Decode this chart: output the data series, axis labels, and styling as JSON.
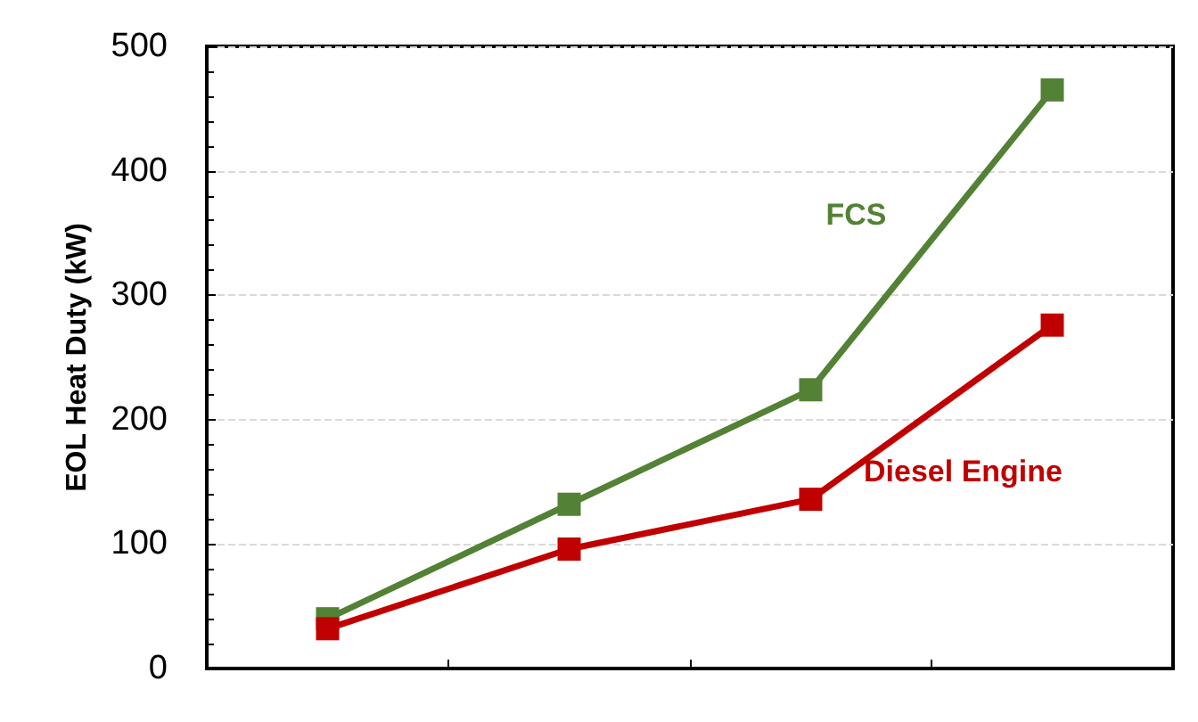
{
  "chart_data": {
    "type": "line",
    "ylabel": "EOL Heat Duty (kW)",
    "categories": [
      null,
      null,
      null,
      null
    ],
    "series": [
      {
        "name": "FCS",
        "color": "#538135",
        "values": [
          40,
          132,
          224,
          465
        ]
      },
      {
        "name": "Diesel Engine",
        "color": "#c00000",
        "values": [
          32,
          96,
          136,
          276
        ]
      }
    ],
    "ylim": [
      0,
      500
    ],
    "yticks": [
      0,
      100,
      200,
      300,
      400,
      500
    ],
    "grid": "y",
    "legend": false,
    "marker": "square",
    "line_style": "solid",
    "tick_labels": "y"
  }
}
